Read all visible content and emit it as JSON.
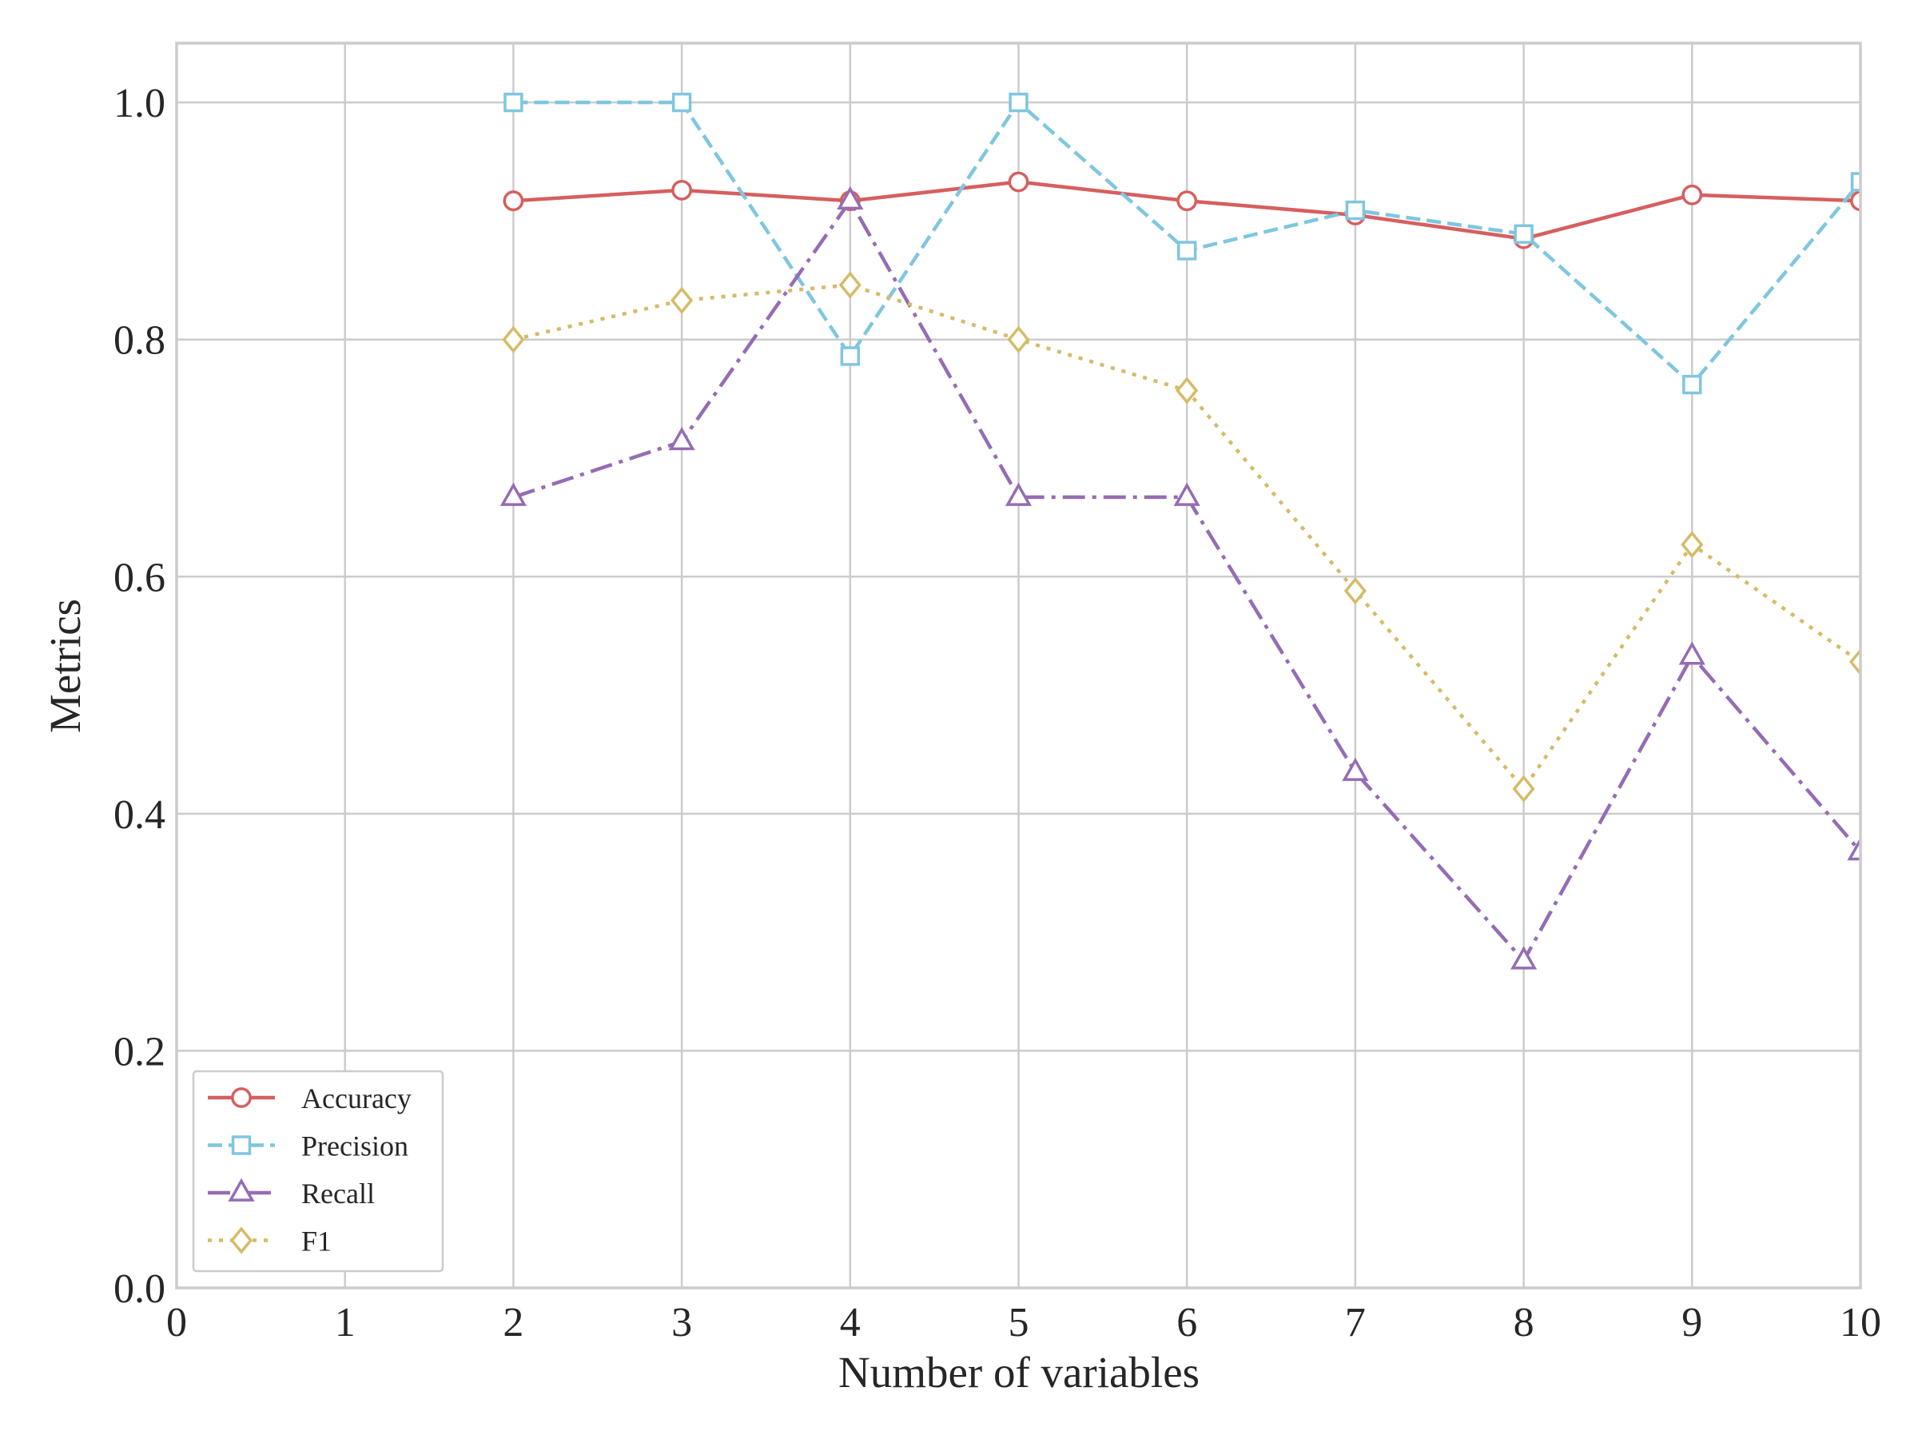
{
  "chart_data": {
    "type": "line",
    "title": "",
    "xlabel": "Number of variables",
    "ylabel": "Metrics",
    "xlim": [
      0,
      10
    ],
    "ylim": [
      0,
      1.05
    ],
    "xticks": [
      0,
      1,
      2,
      3,
      4,
      5,
      6,
      7,
      8,
      9,
      10
    ],
    "xtick_labels": [
      "0",
      "1",
      "2",
      "3",
      "4",
      "5",
      "6",
      "7",
      "8",
      "9",
      "10"
    ],
    "yticks": [
      0.0,
      0.2,
      0.4,
      0.6,
      0.8,
      1.0
    ],
    "ytick_labels": [
      "0.0",
      "0.2",
      "0.4",
      "0.6",
      "0.8",
      "1.0"
    ],
    "grid": true,
    "legend_position": "bottom-left",
    "x": [
      2,
      3,
      4,
      5,
      6,
      7,
      8,
      9,
      10
    ],
    "series": [
      {
        "name": "Accuracy",
        "color": "#d65f5f",
        "line_style": "solid",
        "marker": "circle",
        "values": [
          0.917,
          0.926,
          0.917,
          0.933,
          0.917,
          0.905,
          0.885,
          0.922,
          0.917
        ]
      },
      {
        "name": "Precision",
        "color": "#7fc6e0",
        "line_style": "dashed",
        "marker": "square",
        "values": [
          1.0,
          1.0,
          0.786,
          1.0,
          0.875,
          0.909,
          0.889,
          0.762,
          0.933
        ]
      },
      {
        "name": "Recall",
        "color": "#956cb4",
        "line_style": "dash-dot",
        "marker": "triangle",
        "values": [
          0.667,
          0.714,
          0.917,
          0.667,
          0.667,
          0.435,
          0.276,
          0.533,
          0.368
        ]
      },
      {
        "name": "F1",
        "color": "#d5bb67",
        "line_style": "dotted",
        "marker": "diamond",
        "values": [
          0.8,
          0.833,
          0.846,
          0.8,
          0.757,
          0.588,
          0.421,
          0.627,
          0.528
        ]
      }
    ]
  }
}
